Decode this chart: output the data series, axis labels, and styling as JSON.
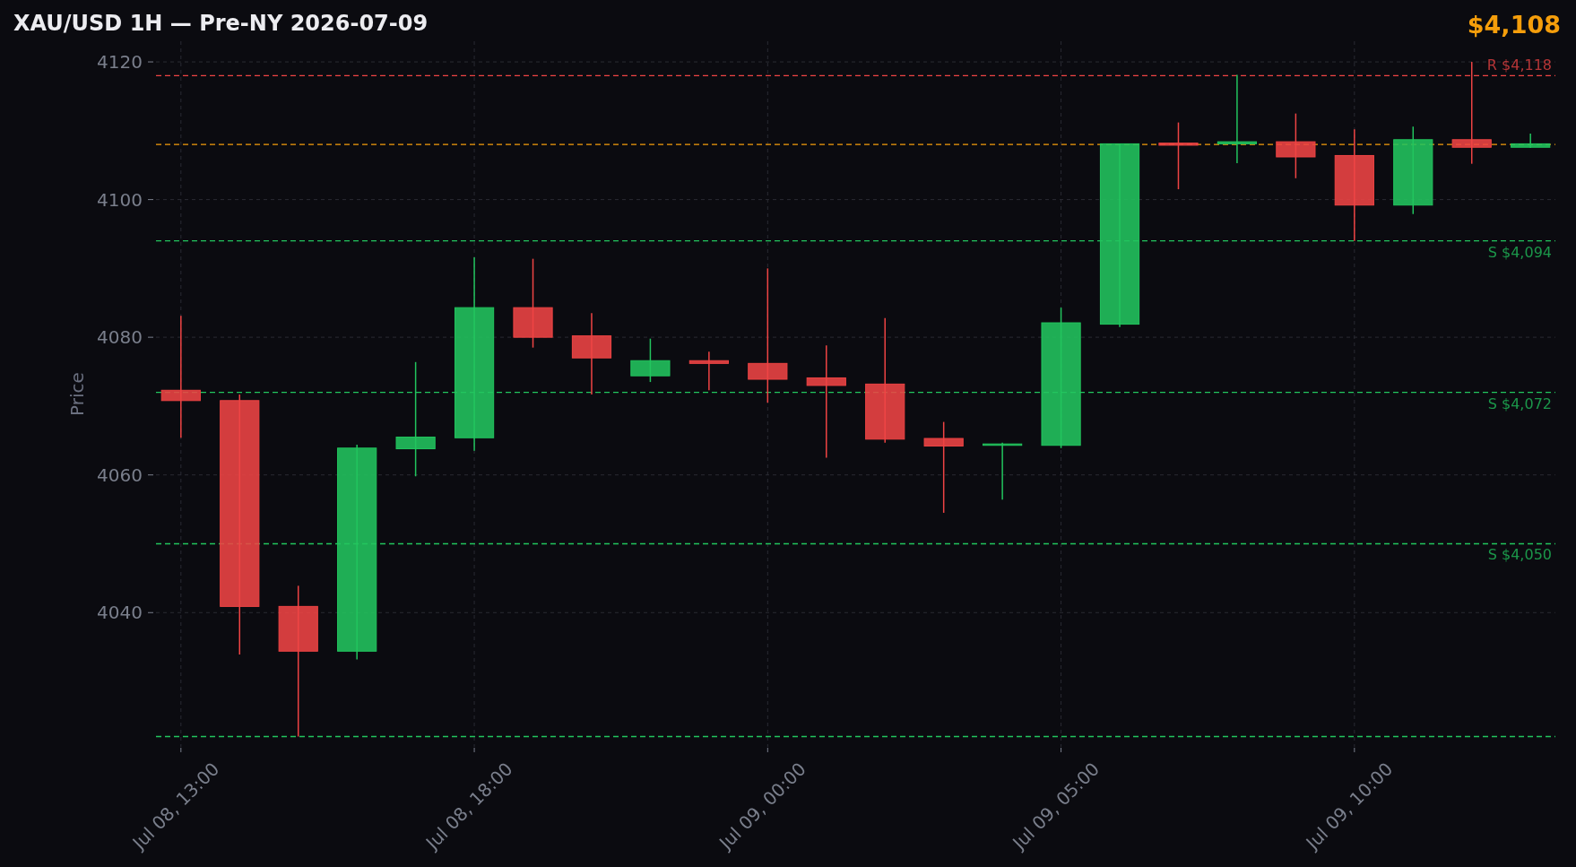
{
  "chart_data": {
    "type": "candlestick",
    "title": "XAU/USD 1H — Pre-NY 2026-07-09",
    "ylabel": "Price",
    "annotations": [
      "$4,108"
    ],
    "categories": [
      "Jul 08, 13:00",
      null,
      null,
      null,
      null,
      "Jul 08, 18:00",
      null,
      null,
      null,
      null,
      "Jul 09, 00:00",
      null,
      null,
      null,
      null,
      "Jul 09, 05:00",
      null,
      null,
      null,
      null,
      "Jul 09, 10:00",
      null,
      null,
      null
    ],
    "ohlc": [
      [
        4072.3,
        4083.1,
        4065.4,
        4070.8
      ],
      [
        4070.8,
        4071.7,
        4033.9,
        4040.9
      ],
      [
        4040.9,
        4043.9,
        4022.0,
        4034.4
      ],
      [
        4034.4,
        4064.4,
        4033.2,
        4063.9
      ],
      [
        4063.8,
        4076.4,
        4059.8,
        4065.5
      ],
      [
        4065.4,
        4091.6,
        4063.5,
        4084.3
      ],
      [
        4084.3,
        4091.4,
        4078.5,
        4080.0
      ],
      [
        4080.2,
        4083.5,
        4071.7,
        4077.0
      ],
      [
        4074.4,
        4079.8,
        4073.5,
        4076.6
      ],
      [
        4076.6,
        4077.9,
        4072.3,
        4076.2
      ],
      [
        4076.2,
        4090.0,
        4070.5,
        4073.9
      ],
      [
        4074.1,
        4078.8,
        4062.5,
        4073.0
      ],
      [
        4073.2,
        4082.8,
        4064.7,
        4065.2
      ],
      [
        4065.3,
        4067.7,
        4054.5,
        4064.2
      ],
      [
        4064.3,
        4064.7,
        4056.4,
        4064.5
      ],
      [
        4064.3,
        4084.3,
        4063.9,
        4082.1
      ],
      [
        4081.9,
        4108.1,
        4081.5,
        4108.1
      ],
      [
        4108.2,
        4111.2,
        4101.5,
        4107.9
      ],
      [
        4108.1,
        4118.1,
        4105.3,
        4108.4
      ],
      [
        4108.4,
        4112.5,
        4103.1,
        4106.2
      ],
      [
        4106.4,
        4110.2,
        4094.0,
        4099.2
      ],
      [
        4099.2,
        4110.6,
        4097.9,
        4108.7
      ],
      [
        4108.7,
        4120.0,
        4105.2,
        4107.6
      ],
      [
        4107.6,
        4109.6,
        4107.5,
        4108.1
      ]
    ],
    "colors": [
      "#ef4444",
      "#ef4444",
      "#ef4444",
      "#22c55e",
      "#22c55e",
      "#22c55e",
      "#ef4444",
      "#ef4444",
      "#22c55e",
      "#ef4444",
      "#ef4444",
      "#ef4444",
      "#ef4444",
      "#ef4444",
      "#22c55e",
      "#22c55e",
      "#22c55e",
      "#ef4444",
      "#22c55e",
      "#ef4444",
      "#ef4444",
      "#22c55e",
      "#ef4444",
      "#22c55e"
    ],
    "ylim": [
      4020.5,
      4123
    ],
    "yticks": [
      4040,
      4060,
      4080,
      4100,
      4120
    ],
    "grid": true,
    "ref_lines": [
      {
        "axis": "y",
        "value": 4118,
        "label": "R $4,118",
        "color": "#ef4444",
        "line_style": "dashed"
      },
      {
        "axis": "y",
        "value": 4108,
        "color": "#f59e0b",
        "line_style": "dashed"
      },
      {
        "axis": "y",
        "value": 4094,
        "label": "S $4,094",
        "color": "#22c55e",
        "line_style": "dashed"
      },
      {
        "axis": "y",
        "value": 4072,
        "label": "S $4,072",
        "color": "#22c55e",
        "line_style": "dashed"
      },
      {
        "axis": "y",
        "value": 4050,
        "label": "S $4,050",
        "color": "#22c55e",
        "line_style": "dashed"
      },
      {
        "axis": "y",
        "value": 4022,
        "color": "#22c55e",
        "line_style": "dashed"
      }
    ]
  }
}
